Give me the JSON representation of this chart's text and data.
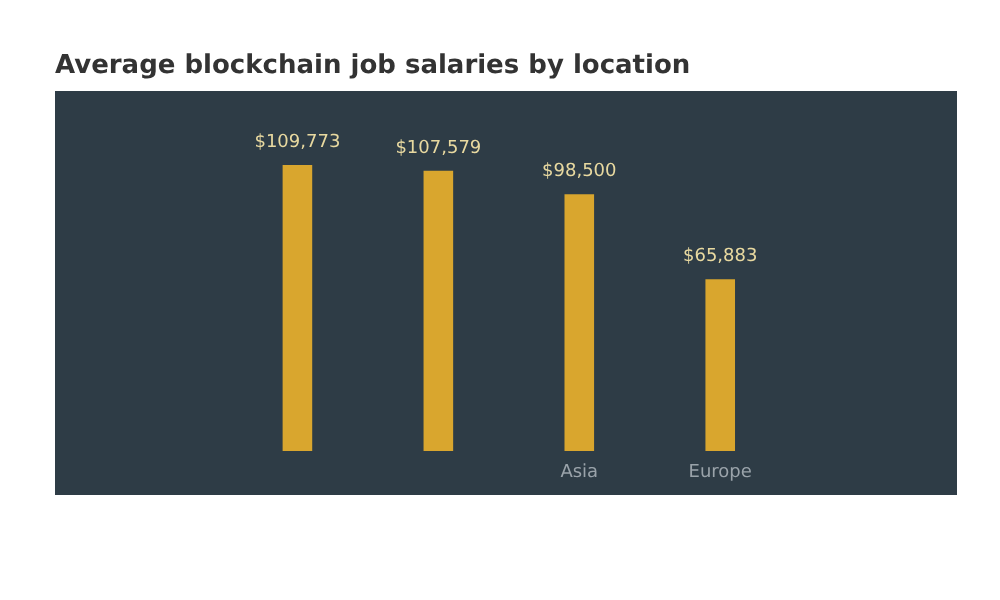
{
  "chart_data": {
    "type": "bar",
    "title": "Average blockchain job salaries by location",
    "categories": [
      null,
      null,
      "Asia",
      "Europe"
    ],
    "values": [
      109773,
      107579,
      98500,
      65883
    ],
    "value_labels": [
      "$109,773",
      "$107,579",
      "$98,500",
      "$65,883"
    ],
    "color": "#d9a62e"
  }
}
